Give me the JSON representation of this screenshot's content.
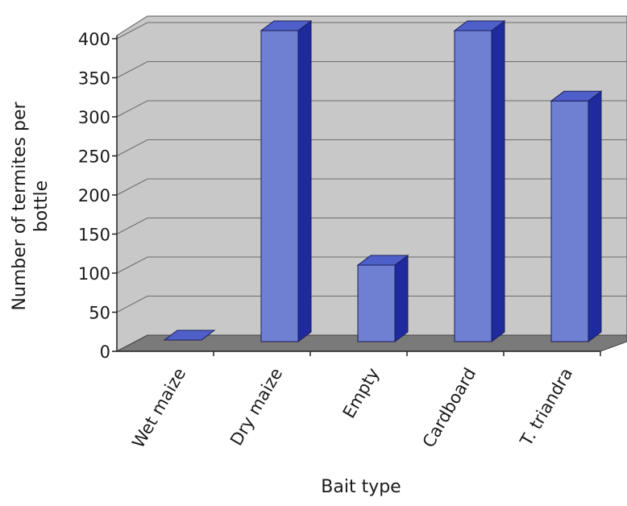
{
  "chart_data": {
    "type": "bar",
    "title": "",
    "xlabel": "Bait type",
    "ylabel": "Number of termites per bottle",
    "categories": [
      "Wet maize",
      "Dry maize",
      "Empty",
      "Cardboard",
      "T. triandra"
    ],
    "values": [
      0,
      400,
      100,
      400,
      310
    ],
    "ylim": [
      0,
      400
    ],
    "yticks": [
      0,
      50,
      100,
      150,
      200,
      250,
      300,
      350,
      400
    ],
    "grid": true,
    "legend": "none",
    "style": "3d",
    "colors": {
      "bar_front": "#6f7fd2",
      "bar_top": "#4f5fc9",
      "bar_side": "#1f2a9e",
      "wall": "#c8c8c8",
      "floor": "#7a7a7a"
    }
  }
}
